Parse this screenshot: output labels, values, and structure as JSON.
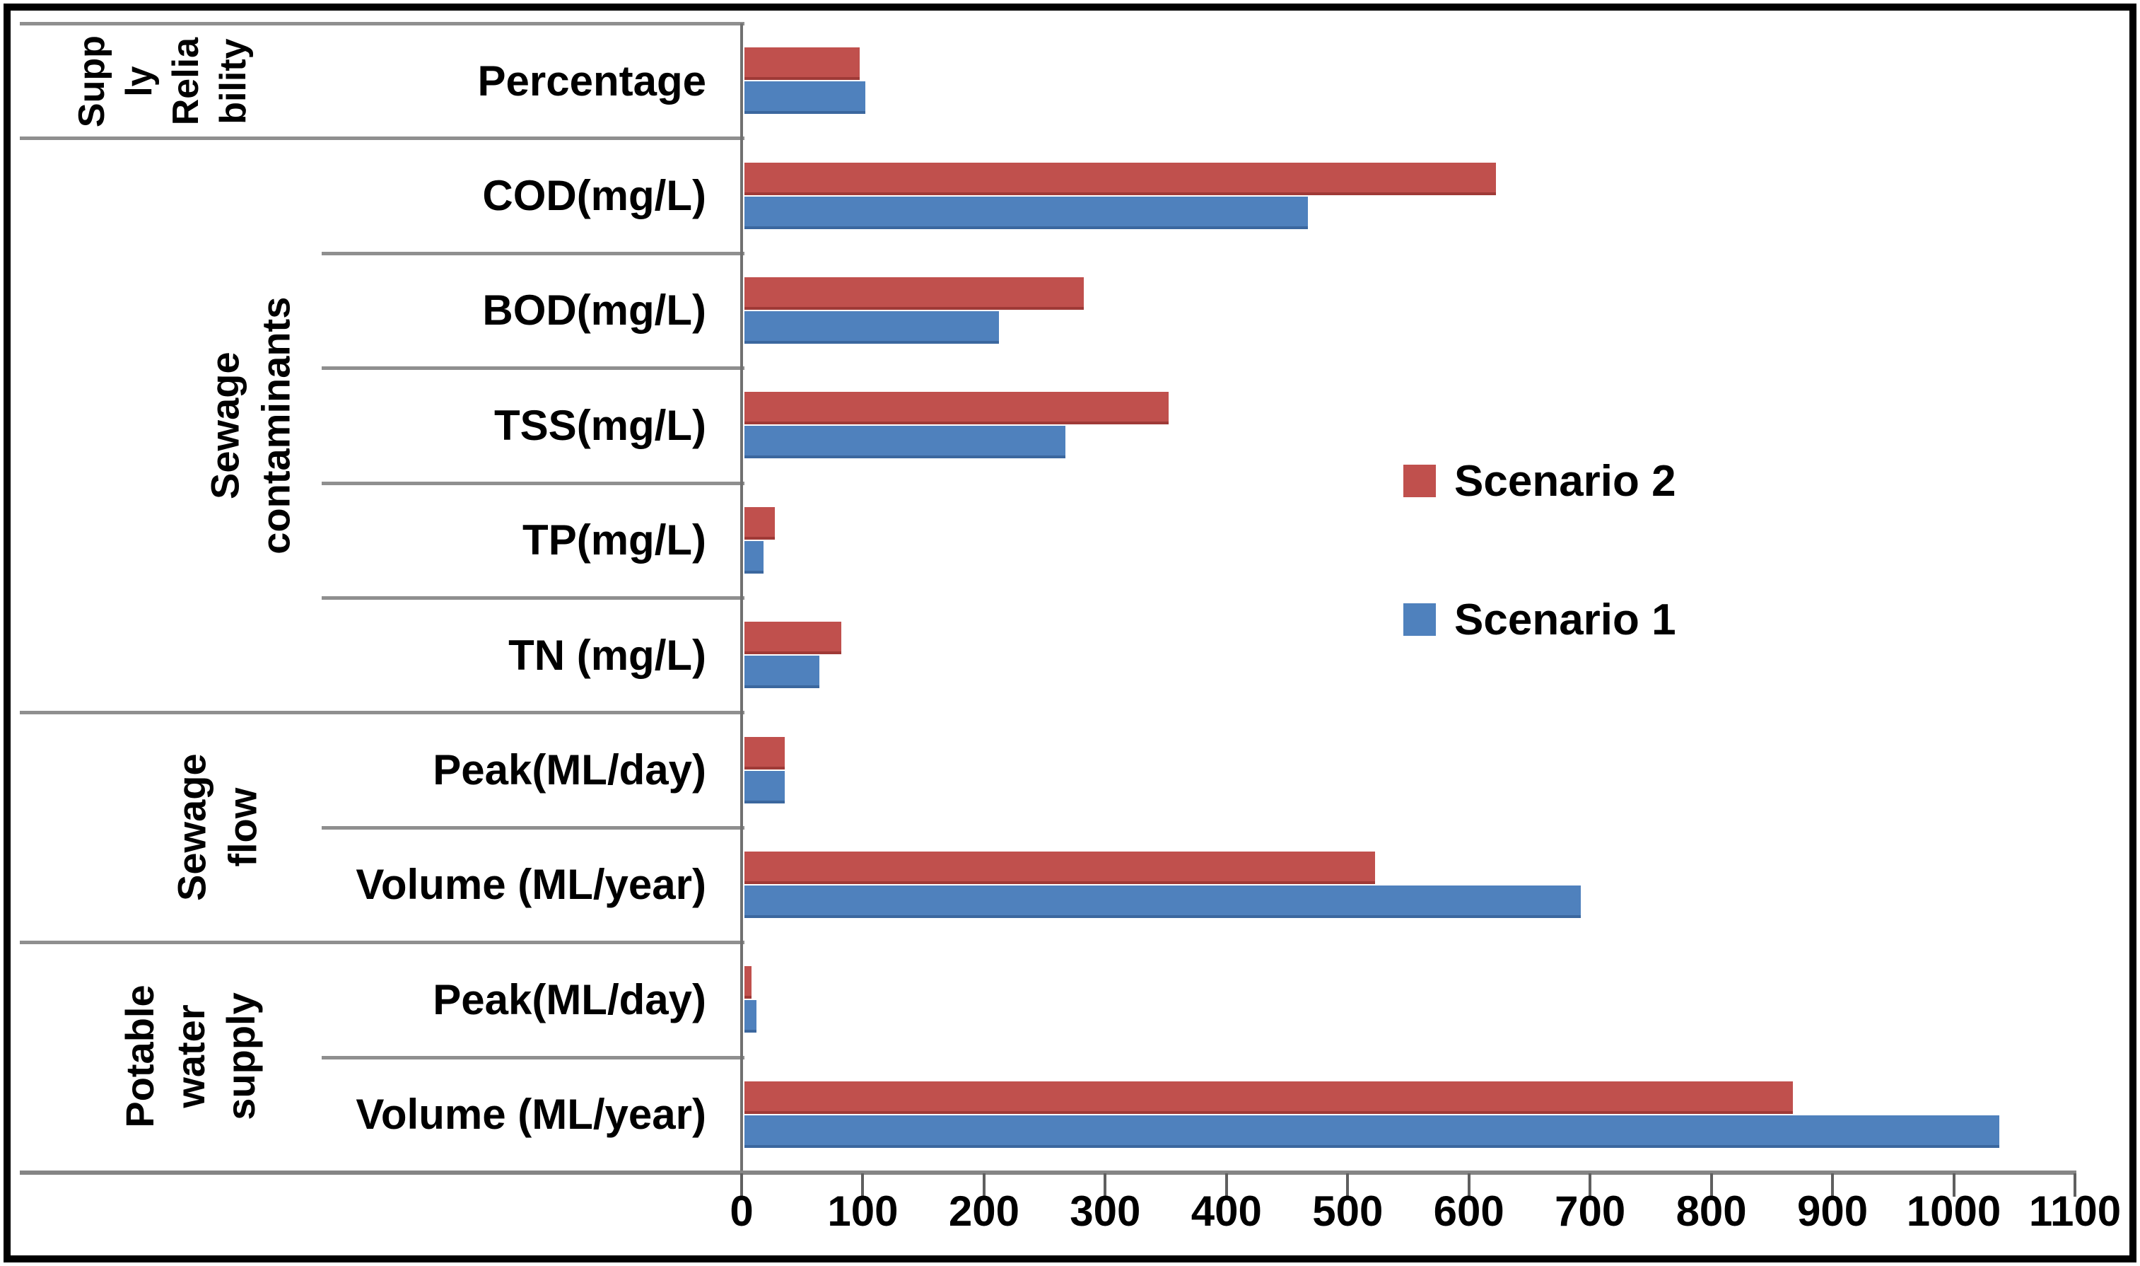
{
  "chart_data": {
    "type": "bar",
    "orientation": "horizontal",
    "title": "",
    "xlabel": "",
    "ylabel": "",
    "axis": {
      "min": 0,
      "max": 1100,
      "step": 100
    },
    "grid": false,
    "legend_position": "right-center",
    "categories": [
      "Percentage",
      "COD(mg/L)",
      "BOD(mg/L)",
      "TSS(mg/L)",
      "TP(mg/L)",
      "TN (mg/L)",
      "Peak(ML/day)",
      "Volume (ML/year)",
      "Peak(ML/day)",
      "Volume (ML/year)"
    ],
    "groups": [
      {
        "label": "Supp\nly\nRelia\nbility",
        "name": "Supply Reliability",
        "row_start": 0,
        "row_count": 1
      },
      {
        "label": "Sewage  contaminants",
        "name": "Sewage contaminants",
        "row_start": 1,
        "row_count": 5
      },
      {
        "label": "Sewage\nflow",
        "name": "Sewage flow",
        "row_start": 6,
        "row_count": 2
      },
      {
        "label": "Potable\nwater\nsupply",
        "name": "Potable water supply",
        "row_start": 8,
        "row_count": 2
      }
    ],
    "series": [
      {
        "name": "Scenario 2",
        "color": "#C0504D",
        "values": [
          95,
          620,
          280,
          350,
          25,
          80,
          33,
          520,
          6,
          865
        ]
      },
      {
        "name": "Scenario 1",
        "color": "#4F81BD",
        "values": [
          100,
          465,
          210,
          265,
          16,
          62,
          33,
          690,
          10,
          1035
        ]
      }
    ],
    "tick_labels": [
      "0",
      "100",
      "200",
      "300",
      "400",
      "500",
      "600",
      "700",
      "800",
      "900",
      "1000",
      "1100"
    ]
  }
}
